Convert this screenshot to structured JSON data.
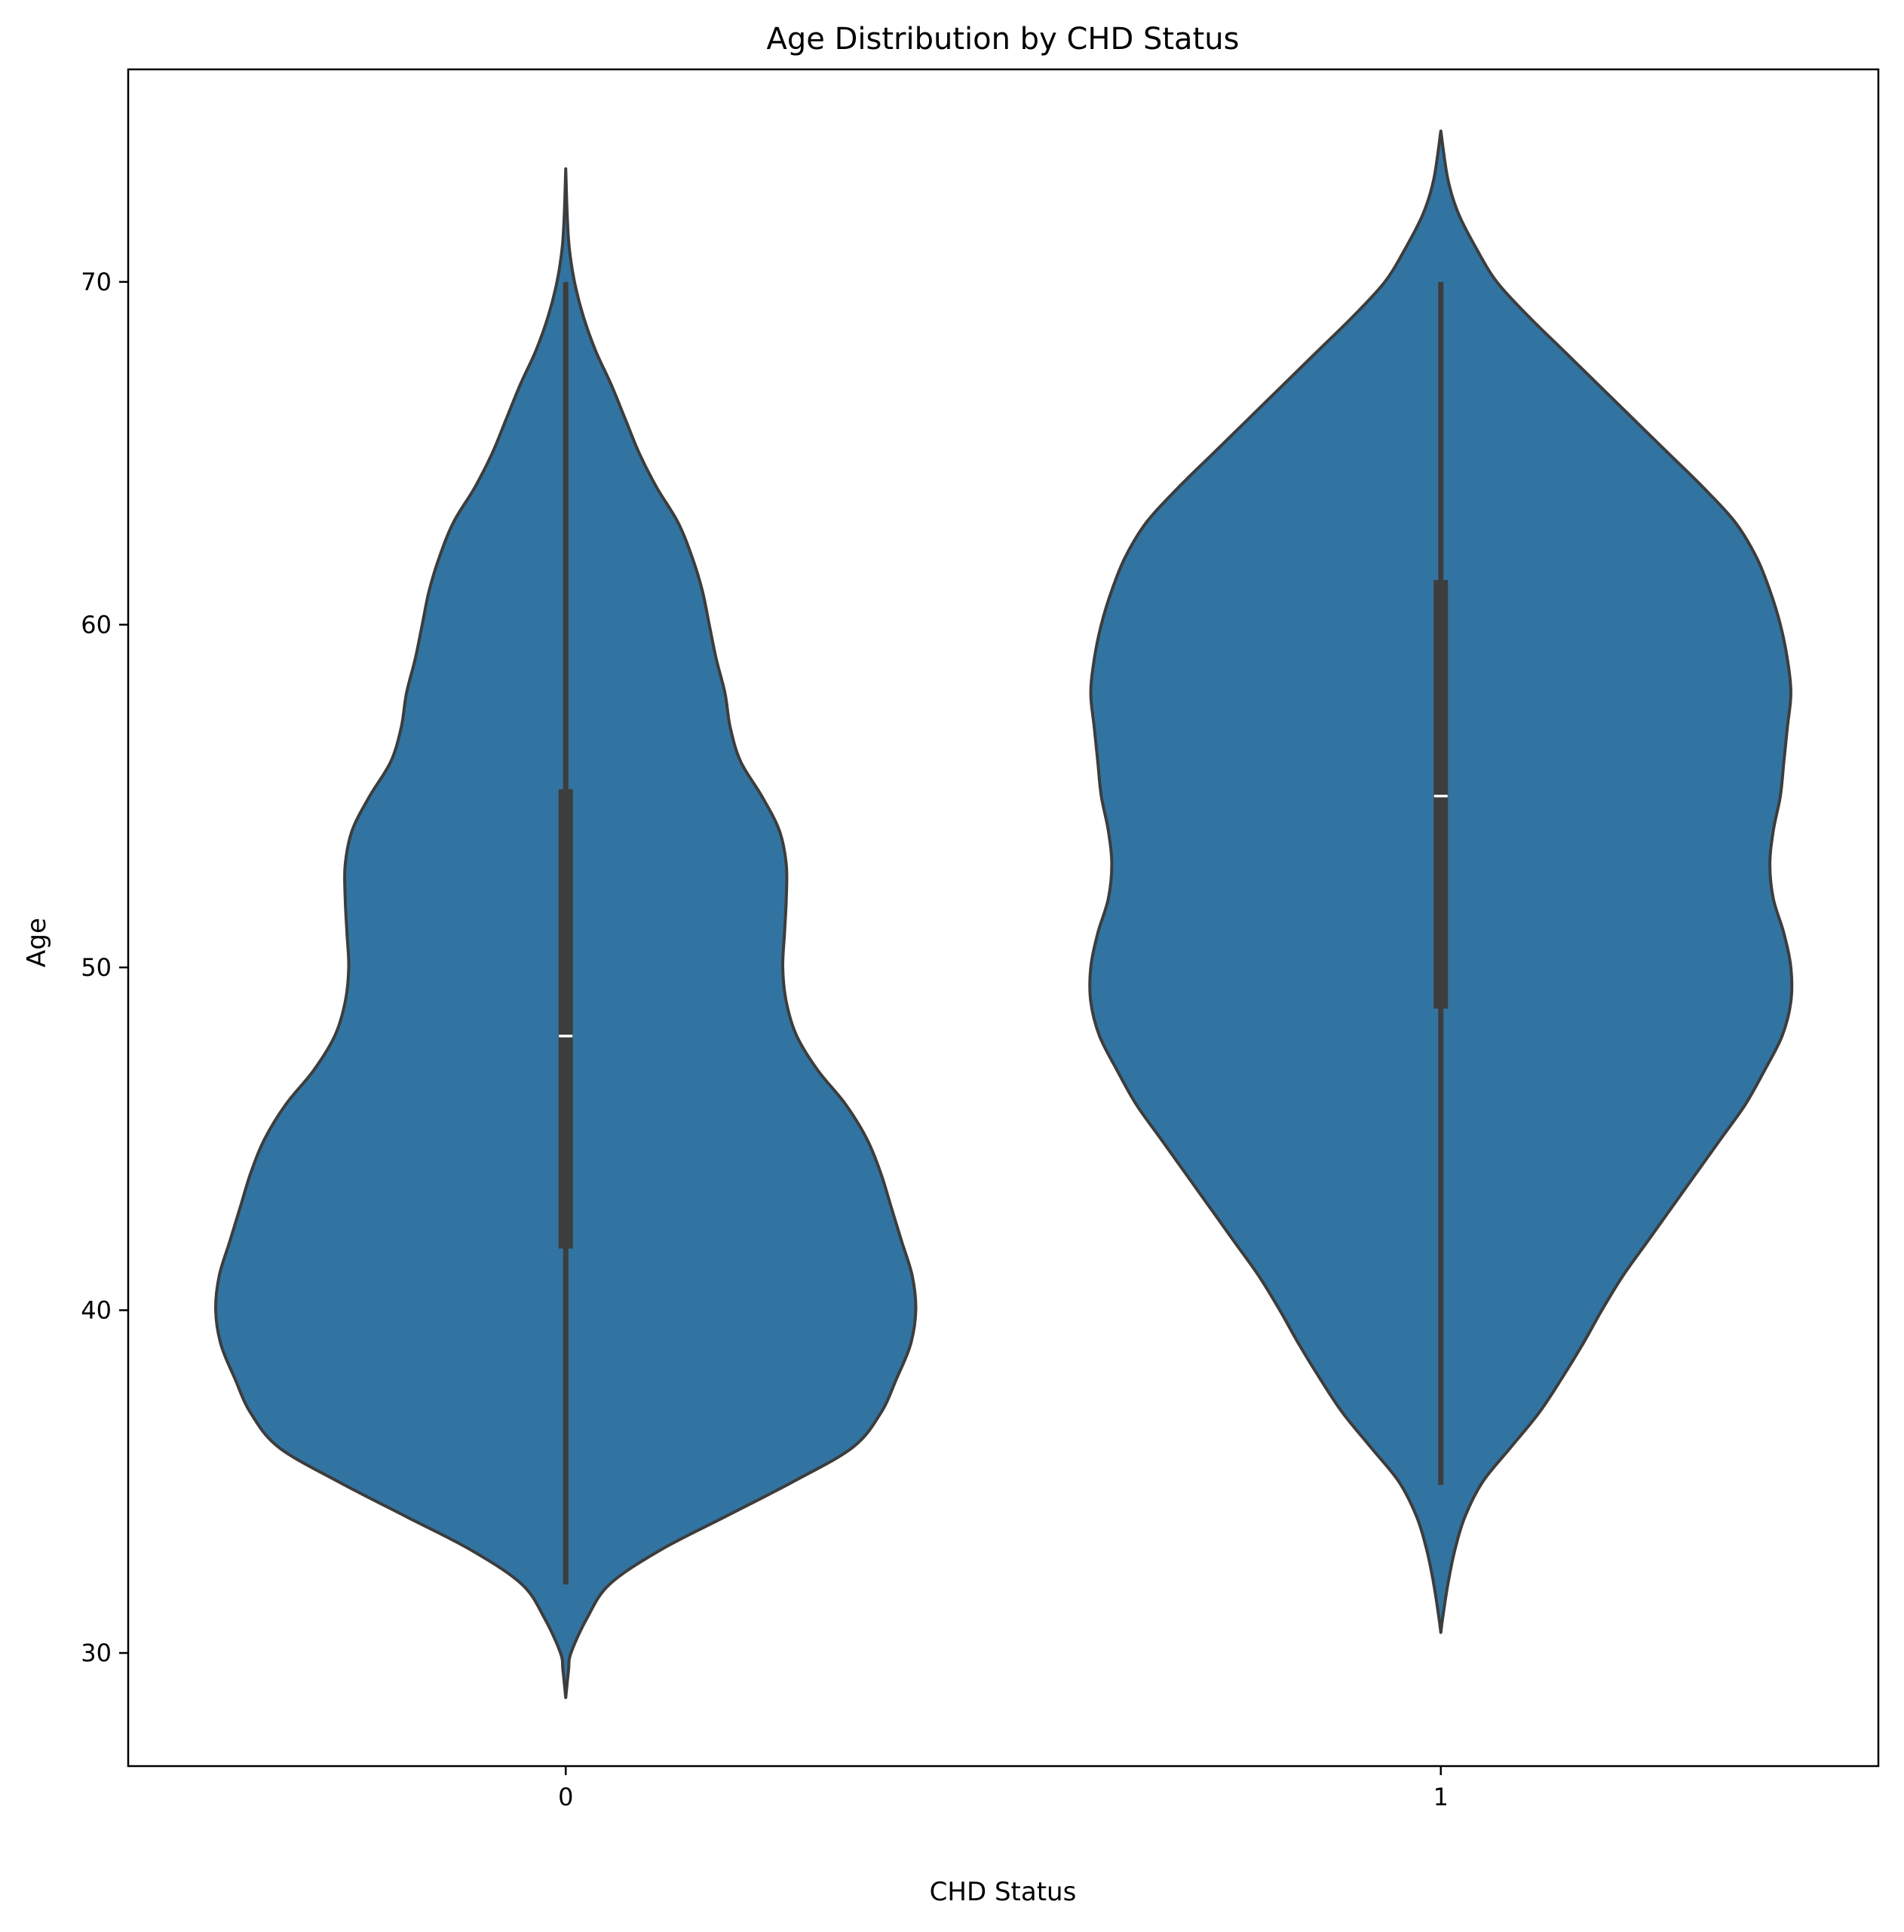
{
  "chart_data": {
    "type": "violin",
    "title": "Age Distribution by CHD Status",
    "xlabel": "CHD Status",
    "ylabel": "Age",
    "categories": [
      "0",
      "1"
    ],
    "ylim": [
      26.7,
      76.2
    ],
    "yticks": [
      "30",
      "40",
      "50",
      "60",
      "70"
    ],
    "grid": false,
    "colors": {
      "fill": "#3274a1",
      "edge": "#3d3d3d",
      "median": "#ffffff"
    },
    "violins": [
      {
        "category": "0",
        "whisker": [
          32.0,
          70.0
        ],
        "iqr": [
          41.8,
          55.2
        ],
        "median": 48.0,
        "kde_extent": [
          28.7,
          73.3
        ],
        "profile": [
          [
            28.7,
            0.0
          ],
          [
            29.5,
            0.008
          ],
          [
            30.0,
            0.015
          ],
          [
            31.0,
            0.06
          ],
          [
            32.0,
            0.125
          ],
          [
            33.0,
            0.27
          ],
          [
            34.0,
            0.46
          ],
          [
            35.0,
            0.65
          ],
          [
            36.0,
            0.82
          ],
          [
            37.0,
            0.9
          ],
          [
            38.0,
            0.945
          ],
          [
            39.0,
            0.985
          ],
          [
            40.0,
            1.0
          ],
          [
            41.0,
            0.99
          ],
          [
            42.0,
            0.96
          ],
          [
            43.0,
            0.93
          ],
          [
            44.0,
            0.9
          ],
          [
            45.0,
            0.86
          ],
          [
            46.0,
            0.8
          ],
          [
            47.0,
            0.72
          ],
          [
            48.0,
            0.66
          ],
          [
            49.0,
            0.63
          ],
          [
            50.0,
            0.62
          ],
          [
            51.0,
            0.625
          ],
          [
            52.0,
            0.63
          ],
          [
            53.0,
            0.63
          ],
          [
            54.0,
            0.61
          ],
          [
            55.0,
            0.56
          ],
          [
            56.0,
            0.5
          ],
          [
            57.0,
            0.47
          ],
          [
            58.0,
            0.455
          ],
          [
            59.0,
            0.43
          ],
          [
            60.0,
            0.41
          ],
          [
            61.0,
            0.39
          ],
          [
            62.0,
            0.36
          ],
          [
            63.0,
            0.32
          ],
          [
            64.0,
            0.26
          ],
          [
            65.0,
            0.21
          ],
          [
            66.0,
            0.17
          ],
          [
            67.0,
            0.13
          ],
          [
            68.0,
            0.085
          ],
          [
            69.0,
            0.05
          ],
          [
            70.0,
            0.025
          ],
          [
            71.0,
            0.01
          ],
          [
            72.0,
            0.004
          ],
          [
            73.3,
            0.0
          ]
        ]
      },
      {
        "category": "1",
        "whisker": [
          34.9,
          70.0
        ],
        "iqr": [
          48.8,
          61.3
        ],
        "median": 55.0,
        "kde_extent": [
          30.6,
          74.4
        ],
        "profile": [
          [
            30.6,
            0.0
          ],
          [
            31.0,
            0.005
          ],
          [
            32.0,
            0.02
          ],
          [
            33.0,
            0.04
          ],
          [
            34.0,
            0.07
          ],
          [
            35.0,
            0.12
          ],
          [
            36.0,
            0.2
          ],
          [
            37.0,
            0.28
          ],
          [
            38.0,
            0.345
          ],
          [
            39.0,
            0.405
          ],
          [
            40.0,
            0.46
          ],
          [
            41.0,
            0.52
          ],
          [
            42.0,
            0.59
          ],
          [
            43.0,
            0.66
          ],
          [
            44.0,
            0.73
          ],
          [
            45.0,
            0.8
          ],
          [
            46.0,
            0.87
          ],
          [
            47.0,
            0.925
          ],
          [
            48.0,
            0.975
          ],
          [
            49.0,
            1.0
          ],
          [
            50.0,
            1.0
          ],
          [
            51.0,
            0.98
          ],
          [
            52.0,
            0.95
          ],
          [
            53.0,
            0.94
          ],
          [
            54.0,
            0.95
          ],
          [
            55.0,
            0.97
          ],
          [
            56.0,
            0.98
          ],
          [
            57.0,
            0.99
          ],
          [
            58.0,
            1.0
          ],
          [
            59.0,
            0.99
          ],
          [
            60.0,
            0.97
          ],
          [
            61.0,
            0.94
          ],
          [
            62.0,
            0.9
          ],
          [
            63.0,
            0.84
          ],
          [
            64.0,
            0.75
          ],
          [
            65.0,
            0.65
          ],
          [
            66.0,
            0.55
          ],
          [
            67.0,
            0.45
          ],
          [
            68.0,
            0.35
          ],
          [
            69.0,
            0.25
          ],
          [
            70.0,
            0.16
          ],
          [
            71.0,
            0.1
          ],
          [
            72.0,
            0.05
          ],
          [
            73.0,
            0.02
          ],
          [
            74.4,
            0.0
          ]
        ]
      }
    ]
  }
}
